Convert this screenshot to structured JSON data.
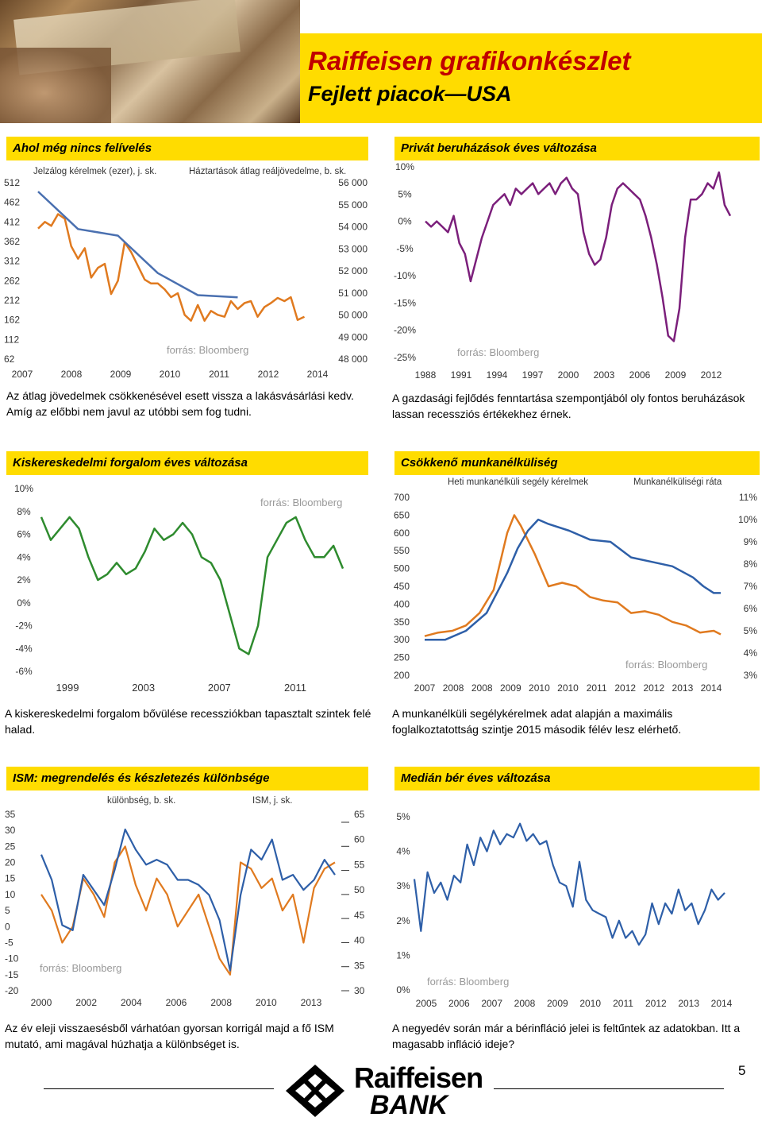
{
  "header": {
    "title": "Raiffeisen grafikonkészlet",
    "subtitle": "Fejlett piacok—USA"
  },
  "panels": [
    {
      "title": "Ahol még nincs felívelés",
      "caption": "Az átlag jövedelmek csökkenésével esett vissza a lakásvásárlási kedv. Amíg az előbbi nem javul az utóbbi sem fog tudni."
    },
    {
      "title": "Privát beruházások éves változása",
      "caption": "A gazdasági fejlődés fenntartása szempontjából oly fontos beruházások lassan recessziós értékekhez érnek."
    },
    {
      "title": "Kiskereskedelmi forgalom éves változása",
      "caption": "A kiskereskedelmi forgalom bővülése recessziókban tapasztalt szintek felé halad."
    },
    {
      "title": "Csökkenő munkanélküliség",
      "caption": "A munkanélküli segélykérelmek adat alapján a maximális foglalkoztatottság szintje 2015 második félév lesz elérhető."
    },
    {
      "title": "ISM: megrendelés és készletezés különbsége",
      "caption": "Az év eleji visszaesésből várhatóan gyorsan korrigál majd a fő ISM mutató, ami magával húzhatja a különbséget is."
    },
    {
      "title": "Medián bér éves változása",
      "caption": "A negyedév során már a bérinfláció jelei is feltűntek az adatokban. Itt a magasabb infláció ideje?"
    }
  ],
  "footer": {
    "page_number": "5",
    "logo_line1": "Raiffeisen",
    "logo_line2": "BANK"
  },
  "chart_data": [
    {
      "type": "line",
      "source": "forrás: Bloomberg",
      "legend": [
        "Jelzálog kérelmek (ezer), j. sk.",
        "Háztartások átlag reáljövedelme, b. sk."
      ],
      "x_ticks": [
        "2007",
        "2008",
        "2009",
        "2010",
        "2011",
        "2012",
        "2014"
      ],
      "y_left_ticks": [
        "512",
        "462",
        "412",
        "362",
        "312",
        "262",
        "212",
        "162",
        "112",
        "62"
      ],
      "y_right_ticks": [
        "56 000",
        "55 000",
        "54 000",
        "53 000",
        "52 000",
        "51 000",
        "50 000",
        "49 000",
        "48 000"
      ],
      "ylim_left": [
        62,
        512
      ],
      "ylim_right": [
        48000,
        56000
      ],
      "colors": [
        "#e07a1f",
        "#4a70b0"
      ],
      "series": [
        {
          "name": "Jelzálog kérelmek (ezer), j. sk.",
          "axis": "left",
          "x": [
            2007.0,
            2007.17,
            2007.33,
            2007.5,
            2007.67,
            2007.83,
            2008.0,
            2008.17,
            2008.33,
            2008.5,
            2008.67,
            2008.83,
            2009.0,
            2009.17,
            2009.33,
            2009.5,
            2009.67,
            2009.83,
            2010.0,
            2010.17,
            2010.33,
            2010.5,
            2010.67,
            2010.83,
            2011.0,
            2011.17,
            2011.33,
            2011.5,
            2011.67,
            2011.83,
            2012.0,
            2012.17,
            2012.33,
            2012.5,
            2012.67,
            2012.83,
            2013.0,
            2013.17,
            2013.33,
            2013.5,
            2013.67
          ],
          "y": [
            395,
            412,
            402,
            432,
            420,
            350,
            318,
            345,
            270,
            295,
            305,
            228,
            262,
            360,
            335,
            300,
            265,
            255,
            255,
            240,
            220,
            230,
            175,
            160,
            200,
            160,
            185,
            175,
            170,
            210,
            190,
            205,
            210,
            170,
            195,
            205,
            218,
            210,
            220,
            162,
            170
          ]
        },
        {
          "name": "Háztartások átlag reáljövedelme, b. sk.",
          "axis": "right",
          "x": [
            2007.0,
            2008.0,
            2009.0,
            2010.0,
            2011.0,
            2012.0
          ],
          "y": [
            55600,
            53900,
            53600,
            51900,
            50900,
            50800
          ]
        }
      ]
    },
    {
      "type": "line",
      "source": "forrás: Bloomberg",
      "x_ticks": [
        "1988",
        "1991",
        "1994",
        "1997",
        "2000",
        "2003",
        "2006",
        "2009",
        "2012"
      ],
      "y_ticks": [
        "10%",
        "5%",
        "0%",
        "-5%",
        "-10%",
        "-15%",
        "-20%",
        "-25%"
      ],
      "ylim": [
        -25,
        10
      ],
      "color": "#7b1f7b",
      "series": [
        {
          "x": [
            1987,
            1987.5,
            1988,
            1988.5,
            1989,
            1989.5,
            1990,
            1990.5,
            1991,
            1991.5,
            1992,
            1992.5,
            1993,
            1993.5,
            1994,
            1994.5,
            1995,
            1995.5,
            1996,
            1996.5,
            1997,
            1997.5,
            1998,
            1998.5,
            1999,
            1999.5,
            2000,
            2000.5,
            2001,
            2001.5,
            2002,
            2002.5,
            2003,
            2003.5,
            2004,
            2004.5,
            2005,
            2005.5,
            2006,
            2006.5,
            2007,
            2007.5,
            2008,
            2008.5,
            2009,
            2009.5,
            2010,
            2010.5,
            2011,
            2011.5,
            2012,
            2012.5,
            2013,
            2013.5,
            2014
          ],
          "y": [
            0,
            -1,
            0,
            -1,
            -2,
            1,
            -4,
            -6,
            -11,
            -7,
            -3,
            0,
            3,
            4,
            5,
            3,
            6,
            5,
            6,
            7,
            5,
            6,
            7,
            5,
            7,
            8,
            6,
            5,
            -2,
            -6,
            -8,
            -7,
            -3,
            3,
            6,
            7,
            6,
            5,
            4,
            1,
            -3,
            -8,
            -14,
            -21,
            -22,
            -16,
            -3,
            4,
            4,
            5,
            7,
            6,
            9,
            3,
            1
          ]
        }
      ]
    },
    {
      "type": "line",
      "source": "forrás: Bloomberg",
      "x_ticks": [
        "1999",
        "2003",
        "2007",
        "2011"
      ],
      "y_ticks": [
        "10%",
        "8%",
        "6%",
        "4%",
        "2%",
        "0%",
        "-2%",
        "-4%",
        "-6%"
      ],
      "ylim": [
        -6,
        10
      ],
      "color": "#2e8b2e",
      "series": [
        {
          "x": [
            1998,
            1998.5,
            1999,
            1999.5,
            2000,
            2000.5,
            2001,
            2001.5,
            2002,
            2002.5,
            2003,
            2003.5,
            2004,
            2004.5,
            2005,
            2005.5,
            2006,
            2006.5,
            2007,
            2007.5,
            2008,
            2008.5,
            2009,
            2009.5,
            2010,
            2010.5,
            2011,
            2011.5,
            2012,
            2012.5,
            2013,
            2013.5,
            2014
          ],
          "y": [
            7.5,
            5.5,
            6.5,
            7.5,
            6.5,
            4.0,
            2.0,
            2.5,
            3.5,
            2.5,
            3.0,
            4.5,
            6.5,
            5.5,
            6.0,
            7.0,
            6.0,
            4.0,
            3.5,
            2.0,
            -1.0,
            -4.0,
            -4.5,
            -2.0,
            4.0,
            5.5,
            7.0,
            7.5,
            5.5,
            4.0,
            4.0,
            5.0,
            3.0
          ]
        }
      ]
    },
    {
      "type": "line",
      "source": "forrás: Bloomberg",
      "legend": [
        "Heti munkanélküli segély kérelmek",
        "Munkanélküliségi ráta"
      ],
      "x_ticks": [
        "2007",
        "2008",
        "2008",
        "2009",
        "2010",
        "2010",
        "2011",
        "2012",
        "2012",
        "2013",
        "2014"
      ],
      "y_left_ticks": [
        "700",
        "650",
        "600",
        "550",
        "500",
        "450",
        "400",
        "350",
        "300",
        "250",
        "200"
      ],
      "y_right_ticks": [
        "11%",
        "10%",
        "9%",
        "8%",
        "7%",
        "6%",
        "5%",
        "4%",
        "3%"
      ],
      "ylim_left": [
        200,
        700
      ],
      "ylim_right": [
        3,
        11
      ],
      "colors": [
        "#e07a1f",
        "#2e5fa8"
      ],
      "series": [
        {
          "name": "Heti munkanélküli segély kérelmek",
          "axis": "left",
          "x": [
            2007.0,
            2007.33,
            2007.67,
            2008.0,
            2008.33,
            2008.67,
            2009.0,
            2009.17,
            2009.33,
            2009.67,
            2010.0,
            2010.33,
            2010.67,
            2011.0,
            2011.33,
            2011.67,
            2012.0,
            2012.33,
            2012.67,
            2013.0,
            2013.33,
            2013.67,
            2014.0,
            2014.17
          ],
          "y": [
            310,
            320,
            325,
            340,
            375,
            440,
            600,
            650,
            620,
            540,
            450,
            460,
            450,
            420,
            410,
            405,
            375,
            380,
            370,
            350,
            340,
            320,
            325,
            315
          ]
        },
        {
          "name": "Munkanélküliségi ráta",
          "axis": "right",
          "x": [
            2007.0,
            2007.5,
            2008.0,
            2008.5,
            2009.0,
            2009.25,
            2009.5,
            2009.75,
            2010.0,
            2010.5,
            2011.0,
            2011.5,
            2012.0,
            2012.5,
            2013.0,
            2013.5,
            2013.75,
            2014.0,
            2014.17
          ],
          "y": [
            4.6,
            4.6,
            5.0,
            5.8,
            7.6,
            8.7,
            9.5,
            10.0,
            9.8,
            9.5,
            9.1,
            9.0,
            8.3,
            8.1,
            7.9,
            7.4,
            7.0,
            6.7,
            6.7
          ]
        }
      ]
    },
    {
      "type": "line",
      "source": "forrás: Bloomberg",
      "legend": [
        "különbség, b. sk.",
        "ISM, j. sk."
      ],
      "x_ticks": [
        "2000",
        "2002",
        "2004",
        "2006",
        "2008",
        "2010",
        "2013"
      ],
      "y_left_ticks": [
        "35",
        "30",
        "25",
        "20",
        "15",
        "10",
        "5",
        "0",
        "-5",
        "-10",
        "-15",
        "-20"
      ],
      "y_right_ticks": [
        "65",
        "60",
        "55",
        "50",
        "45",
        "40",
        "35",
        "30"
      ],
      "ylim_left": [
        -20,
        35
      ],
      "ylim_right": [
        30,
        65
      ],
      "colors": [
        "#e07a1f",
        "#2e5fa8"
      ],
      "series": [
        {
          "name": "különbség, b. sk.",
          "axis": "left",
          "x": [
            2000,
            2000.5,
            2001,
            2001.5,
            2002,
            2002.5,
            2003,
            2003.5,
            2004,
            2004.5,
            2005,
            2005.5,
            2006,
            2006.5,
            2007,
            2007.5,
            2008,
            2008.5,
            2009,
            2009.5,
            2010,
            2010.5,
            2011,
            2011.5,
            2012,
            2012.5,
            2013,
            2013.5,
            2014
          ],
          "y": [
            10,
            5,
            -5,
            0,
            15,
            10,
            3,
            20,
            25,
            13,
            5,
            15,
            10,
            0,
            5,
            10,
            0,
            -10,
            -15,
            20,
            18,
            12,
            15,
            5,
            10,
            -5,
            12,
            18,
            20
          ]
        },
        {
          "name": "ISM, j. sk.",
          "axis": "right",
          "x": [
            2000,
            2000.5,
            2001,
            2001.5,
            2002,
            2002.5,
            2003,
            2003.5,
            2004,
            2004.5,
            2005,
            2005.5,
            2006,
            2006.5,
            2007,
            2007.5,
            2008,
            2008.5,
            2009,
            2009.5,
            2010,
            2010.5,
            2011,
            2011.5,
            2012,
            2012.5,
            2013,
            2013.5,
            2014
          ],
          "y": [
            57,
            52,
            43,
            42,
            53,
            50,
            47,
            54,
            62,
            58,
            55,
            56,
            55,
            52,
            52,
            51,
            49,
            44,
            34,
            49,
            58,
            56,
            60,
            52,
            53,
            50,
            52,
            56,
            53
          ]
        }
      ]
    },
    {
      "type": "line",
      "source": "forrás: Bloomberg",
      "x_ticks": [
        "2005",
        "2006",
        "2007",
        "2008",
        "2009",
        "2010",
        "2011",
        "2012",
        "2013",
        "2014"
      ],
      "y_ticks": [
        "5%",
        "4%",
        "3%",
        "2%",
        "1%",
        "0%"
      ],
      "ylim": [
        0,
        5
      ],
      "color": "#2e5fa8",
      "series": [
        {
          "x": [
            2004.7,
            2004.9,
            2005.1,
            2005.3,
            2005.5,
            2005.7,
            2005.9,
            2006.1,
            2006.3,
            2006.5,
            2006.7,
            2006.9,
            2007.1,
            2007.3,
            2007.5,
            2007.7,
            2007.9,
            2008.1,
            2008.3,
            2008.5,
            2008.7,
            2008.9,
            2009.1,
            2009.3,
            2009.5,
            2009.7,
            2009.9,
            2010.1,
            2010.3,
            2010.5,
            2010.7,
            2010.9,
            2011.1,
            2011.3,
            2011.5,
            2011.7,
            2011.9,
            2012.1,
            2012.3,
            2012.5,
            2012.7,
            2012.9,
            2013.1,
            2013.3,
            2013.5,
            2013.7,
            2013.9,
            2014.1
          ],
          "y": [
            3.2,
            1.7,
            3.4,
            2.8,
            3.1,
            2.6,
            3.3,
            3.1,
            4.2,
            3.6,
            4.4,
            4.0,
            4.6,
            4.2,
            4.5,
            4.4,
            4.8,
            4.3,
            4.5,
            4.2,
            4.3,
            3.6,
            3.1,
            3.0,
            2.4,
            3.7,
            2.6,
            2.3,
            2.2,
            2.1,
            1.5,
            2.0,
            1.5,
            1.7,
            1.3,
            1.6,
            2.5,
            1.9,
            2.5,
            2.2,
            2.9,
            2.3,
            2.5,
            1.9,
            2.3,
            2.9,
            2.6,
            2.8
          ]
        }
      ]
    }
  ]
}
